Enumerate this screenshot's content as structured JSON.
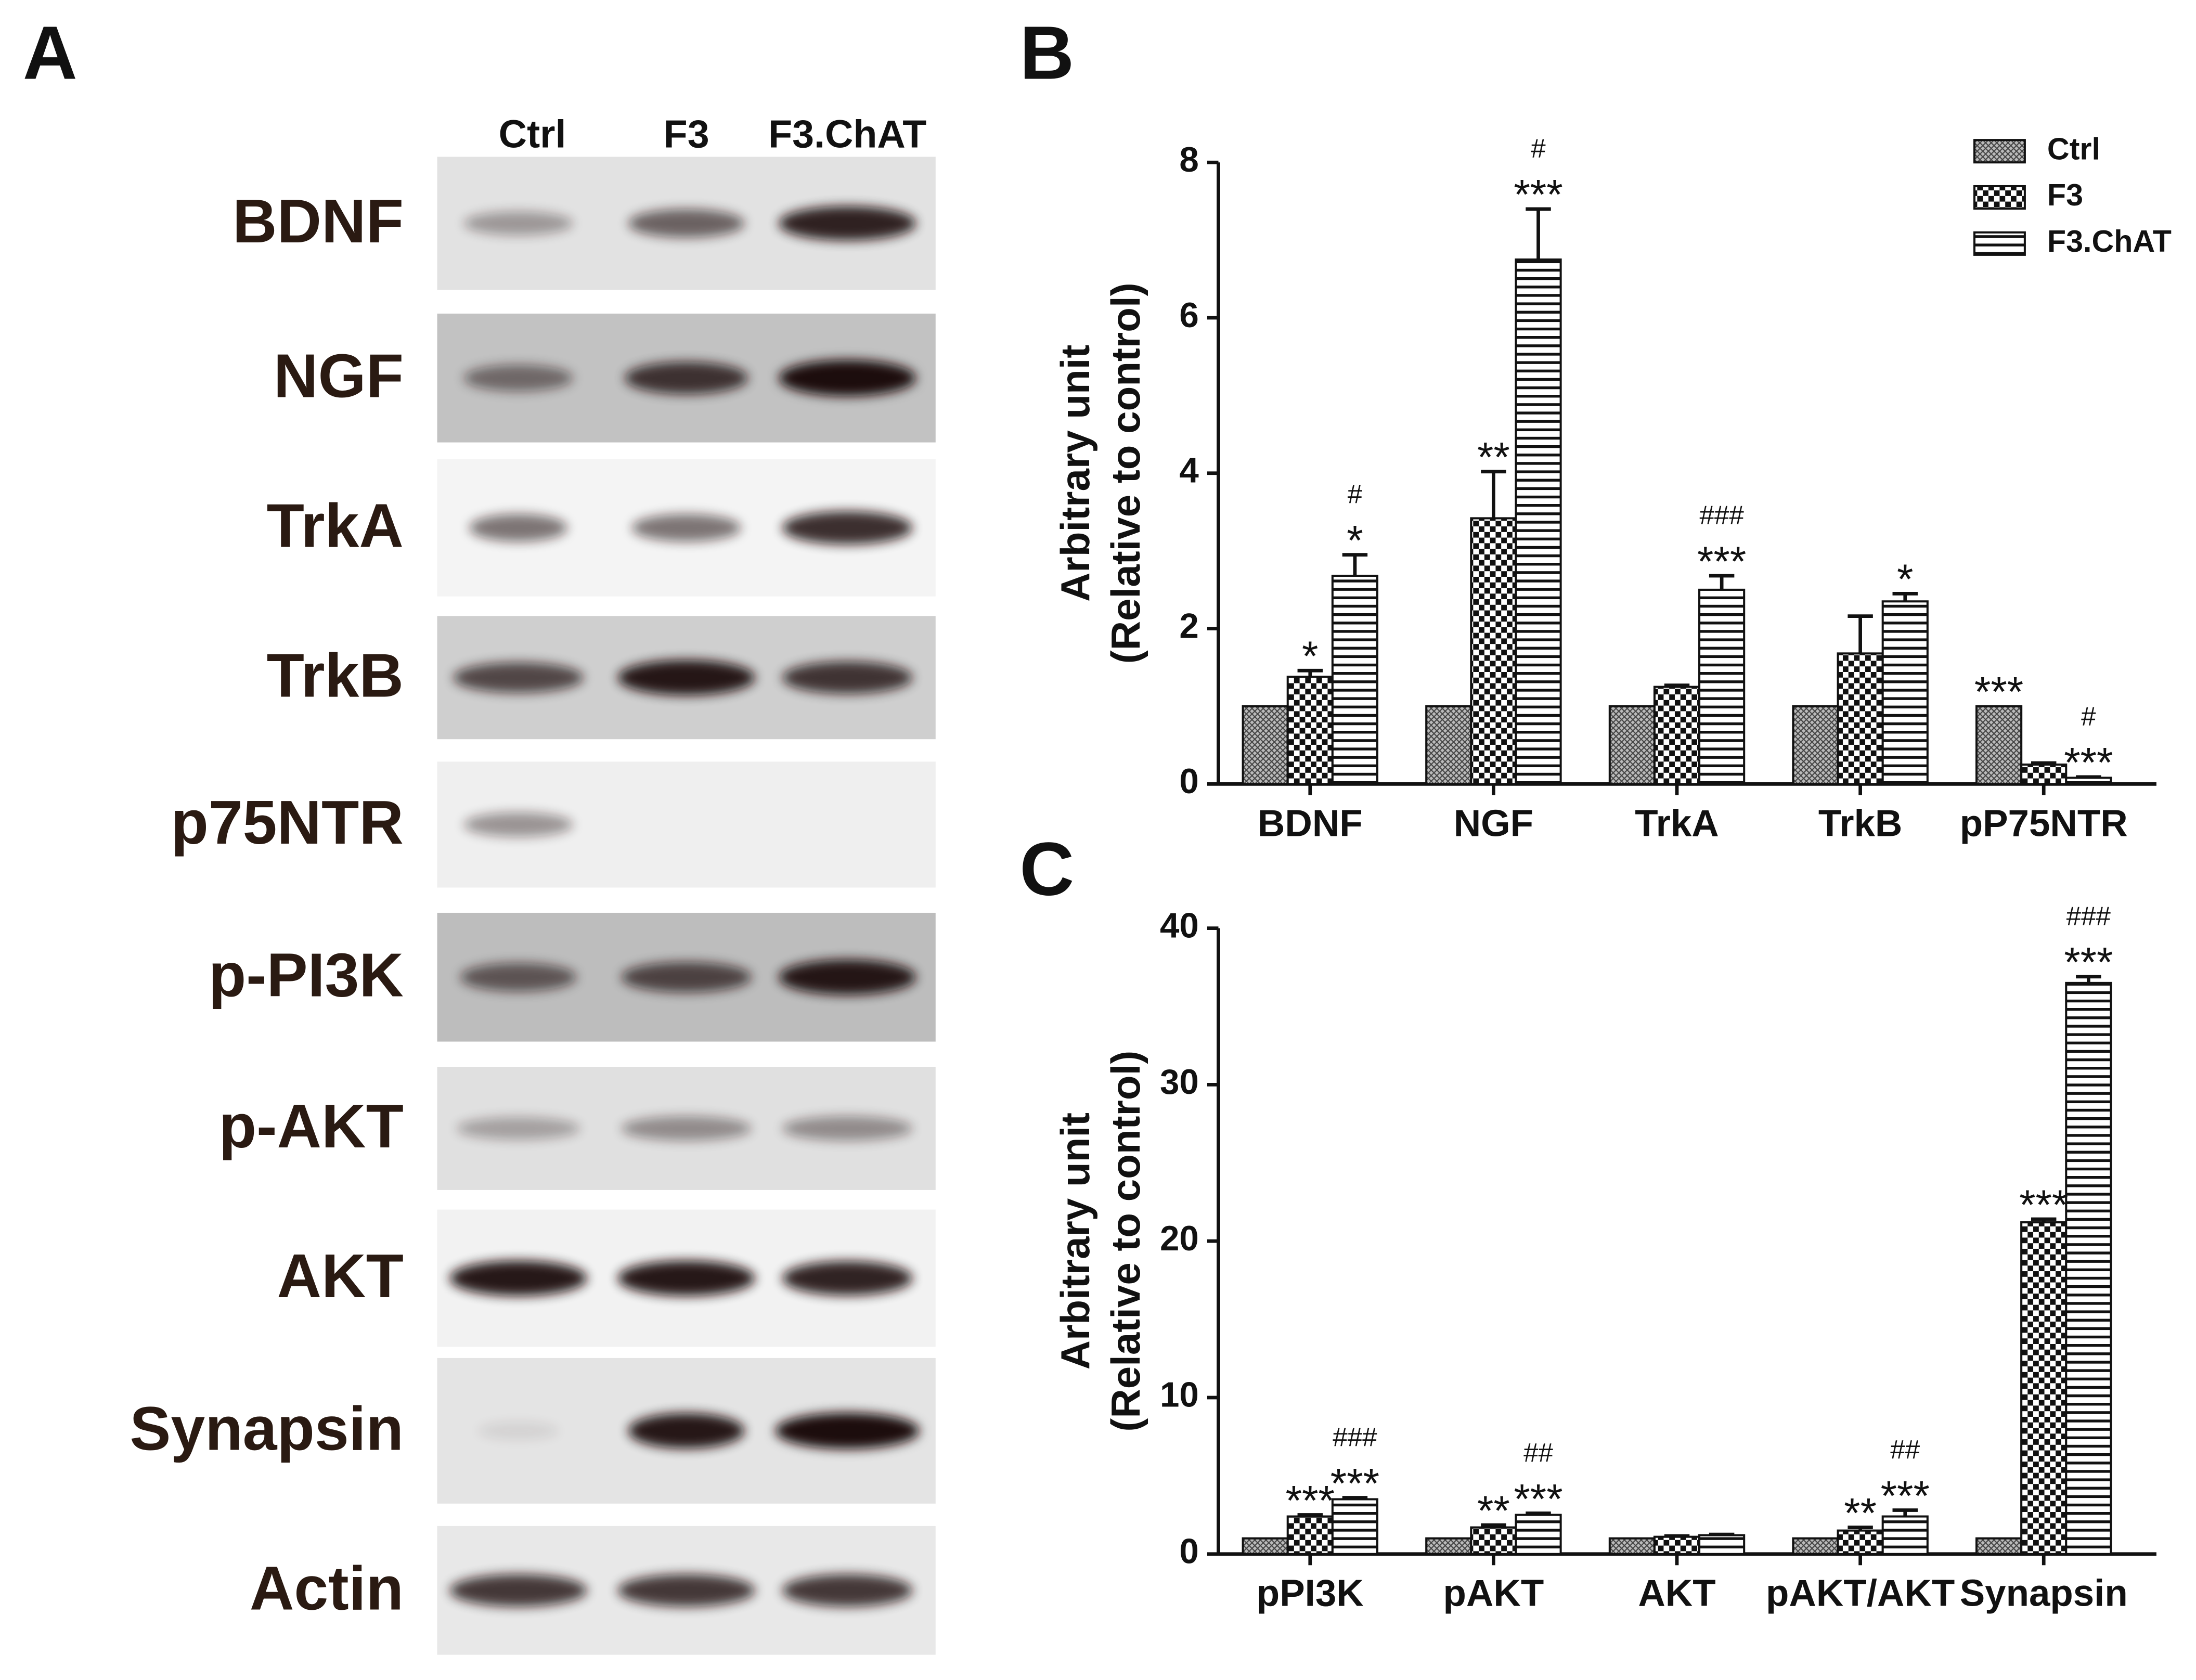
{
  "blot": {
    "panel": "A",
    "lanes": [
      "Ctrl",
      "F3",
      "F3.ChAT"
    ],
    "proteins": [
      "BDNF",
      "NGF",
      "TrkA",
      "TrkB",
      "p75NTR",
      "p-PI3K",
      "p-AKT",
      "AKT",
      "Synapsin",
      "Actin"
    ]
  },
  "chart_data": [
    {
      "type": "bar",
      "panel": "B",
      "ylabel": [
        "Arbitrary unit",
        "(Relative to control)"
      ],
      "categories": [
        "BDNF",
        "NGF",
        "TrkA",
        "TrkB",
        "pP75NTR"
      ],
      "series": [
        {
          "name": "Ctrl",
          "pattern": "hatch",
          "values": [
            1,
            1,
            1,
            1,
            1
          ]
        },
        {
          "name": "F3",
          "pattern": "checker",
          "values": [
            1.38,
            3.42,
            1.25,
            1.68,
            0.25
          ],
          "errors": [
            0.08,
            0.6,
            0.02,
            0.48,
            0.02
          ]
        },
        {
          "name": "F3.ChAT",
          "pattern": "stripes",
          "values": [
            2.68,
            6.75,
            2.5,
            2.35,
            0.08
          ],
          "errors": [
            0.27,
            0.65,
            0.18,
            0.1,
            0.01
          ]
        }
      ],
      "ylim": [
        0,
        8
      ],
      "yticks": [
        0,
        2,
        4,
        6,
        8
      ],
      "legend": "upper right",
      "annotations": [
        {
          "category": 0,
          "series": 1,
          "lines": [
            "*"
          ]
        },
        {
          "category": 0,
          "series": 2,
          "lines": [
            "#",
            "*"
          ]
        },
        {
          "category": 1,
          "series": 1,
          "lines": [
            "**"
          ]
        },
        {
          "category": 1,
          "series": 2,
          "lines": [
            "#",
            "***"
          ]
        },
        {
          "category": 2,
          "series": 2,
          "lines": [
            "###",
            "***"
          ]
        },
        {
          "category": 3,
          "series": 2,
          "lines": [
            "*"
          ]
        },
        {
          "category": 4,
          "series": 0,
          "lines": [
            "***"
          ]
        },
        {
          "category": 4,
          "series": 2,
          "lines": [
            "#",
            "***"
          ]
        }
      ]
    },
    {
      "type": "bar",
      "panel": "C",
      "ylabel": [
        "Arbitrary unit",
        "(Relative to control)"
      ],
      "categories": [
        "pPI3K",
        "pAKT",
        "AKT",
        "pAKT/AKT",
        "Synapsin"
      ],
      "series": [
        {
          "name": "Ctrl",
          "pattern": "hatch",
          "values": [
            1,
            1,
            1,
            1,
            1
          ]
        },
        {
          "name": "F3",
          "pattern": "checker",
          "values": [
            2.4,
            1.7,
            1.1,
            1.5,
            21.2
          ],
          "errors": [
            0.1,
            0.15,
            0.05,
            0.2,
            0.2
          ]
        },
        {
          "name": "F3.ChAT",
          "pattern": "stripes",
          "values": [
            3.5,
            2.5,
            1.2,
            2.4,
            36.5
          ],
          "errors": [
            0.1,
            0.1,
            0.05,
            0.4,
            0.4
          ]
        }
      ],
      "ylim": [
        0,
        40
      ],
      "yticks": [
        0,
        10,
        20,
        30,
        40
      ],
      "annotations": [
        {
          "category": 0,
          "series": 1,
          "lines": [
            "***"
          ]
        },
        {
          "category": 0,
          "series": 2,
          "lines": [
            "###",
            "***"
          ]
        },
        {
          "category": 1,
          "series": 1,
          "lines": [
            "**"
          ]
        },
        {
          "category": 1,
          "series": 2,
          "lines": [
            "##",
            "***"
          ]
        },
        {
          "category": 3,
          "series": 1,
          "lines": [
            "**"
          ]
        },
        {
          "category": 3,
          "series": 2,
          "lines": [
            "##",
            "***"
          ]
        },
        {
          "category": 4,
          "series": 1,
          "lines": [
            "***"
          ]
        },
        {
          "category": 4,
          "series": 2,
          "lines": [
            "###",
            "***"
          ]
        }
      ]
    }
  ]
}
